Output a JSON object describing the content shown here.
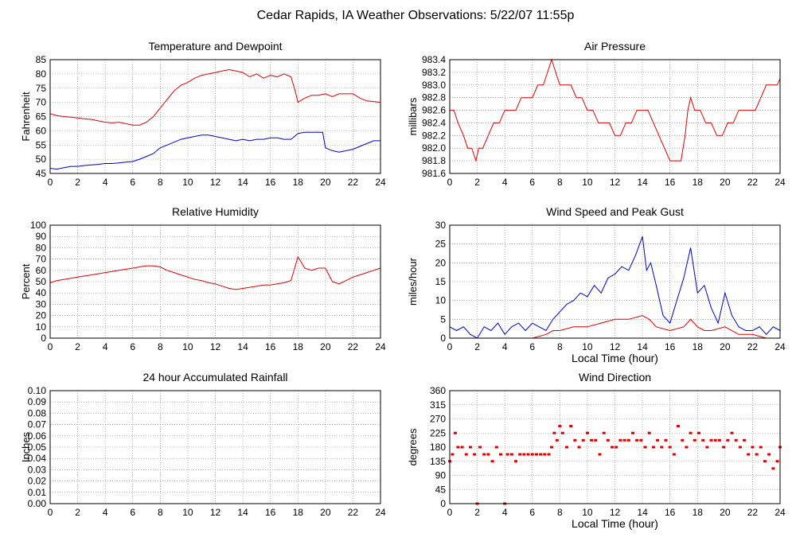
{
  "page": {
    "title": "Cedar Rapids, IA Weather Observations: 5/22/07 11:55p"
  },
  "colors": {
    "red": "#e00000",
    "blue": "#0000cc",
    "grid": "#808080",
    "frame": "#000000"
  },
  "chart_data": [
    {
      "id": "temp",
      "type": "line",
      "title": "Temperature and Dewpoint",
      "xlabel": "",
      "ylabel": "Fahrenheit",
      "xlim": [
        0,
        24
      ],
      "ylim": [
        45,
        85
      ],
      "xticks": [
        0,
        2,
        4,
        6,
        8,
        10,
        12,
        14,
        16,
        18,
        20,
        22,
        24
      ],
      "yticks": [
        45,
        50,
        55,
        60,
        65,
        70,
        75,
        80,
        85
      ],
      "grid": true,
      "series": [
        {
          "color": "#e00000",
          "x": [
            0,
            0.5,
            1,
            1.5,
            2,
            2.5,
            3,
            3.5,
            4,
            4.5,
            5,
            5.5,
            6,
            6.5,
            7,
            7.5,
            8,
            8.5,
            9,
            9.5,
            10,
            10.5,
            11,
            11.5,
            12,
            12.5,
            13,
            13.5,
            14,
            14.5,
            15,
            15.5,
            16,
            16.5,
            17,
            17.5,
            17.8,
            18,
            18.5,
            19,
            19.5,
            20,
            20.5,
            21,
            21.5,
            22,
            22.5,
            23,
            23.5,
            24
          ],
          "y": [
            66,
            65.3,
            65,
            64.8,
            64.5,
            64.2,
            64,
            63.5,
            63,
            62.8,
            63,
            62.5,
            62,
            62,
            63,
            65,
            68,
            71,
            74,
            76,
            77,
            78.5,
            79.5,
            80,
            80.5,
            81,
            81.5,
            81,
            80.5,
            79,
            80,
            78.5,
            79.5,
            79,
            80,
            79,
            74,
            70,
            71.5,
            72.5,
            72.5,
            73,
            72,
            73,
            73,
            73,
            71.5,
            70.5,
            70.3,
            70
          ]
        },
        {
          "color": "#0000cc",
          "x": [
            0,
            0.5,
            1,
            1.5,
            2,
            2.5,
            3,
            3.5,
            4,
            4.5,
            5,
            5.5,
            6,
            6.5,
            7,
            7.5,
            8,
            8.5,
            9,
            9.5,
            10,
            10.5,
            11,
            11.5,
            12,
            12.5,
            13,
            13.5,
            14,
            14.5,
            15,
            15.5,
            16,
            16.5,
            17,
            17.5,
            18,
            18.5,
            19,
            19.5,
            19.8,
            20,
            20.5,
            21,
            21.5,
            22,
            22.5,
            23,
            23.5,
            24
          ],
          "y": [
            46.8,
            46.5,
            47,
            47.5,
            47.5,
            47.8,
            48,
            48.2,
            48.5,
            48.5,
            48.7,
            49,
            49.2,
            50,
            51,
            52,
            54,
            55,
            56,
            57,
            57.5,
            58,
            58.5,
            58.5,
            58,
            57.5,
            57,
            56.5,
            57,
            56.5,
            57,
            57,
            57.5,
            57.5,
            57,
            57,
            59,
            59.5,
            59.5,
            59.5,
            59.5,
            54,
            53,
            52.5,
            53,
            53.5,
            54.5,
            55.5,
            56.5,
            56.5
          ]
        }
      ]
    },
    {
      "id": "pressure",
      "type": "line",
      "title": "Air Pressure",
      "xlabel": "",
      "ylabel": "millibars",
      "xlim": [
        0,
        24
      ],
      "ylim": [
        981.6,
        983.4
      ],
      "xticks": [
        0,
        2,
        4,
        6,
        8,
        10,
        12,
        14,
        16,
        18,
        20,
        22,
        24
      ],
      "yticks": [
        981.6,
        981.8,
        982.0,
        982.2,
        982.4,
        982.6,
        982.8,
        983.0,
        983.2,
        983.4
      ],
      "ytick_labels": [
        "981.6",
        "981.8",
        "982.0",
        "982.2",
        "982.4",
        "982.6",
        "982.8",
        "983.0",
        "983.2",
        "983.4"
      ],
      "grid": true,
      "series": [
        {
          "color": "#e00000",
          "x": [
            0,
            0.3,
            0.6,
            1,
            1.3,
            1.6,
            1.9,
            2.1,
            2.4,
            2.8,
            3.2,
            3.6,
            4,
            4.4,
            4.8,
            5.2,
            5.6,
            6,
            6.4,
            6.8,
            7.1,
            7.4,
            7.7,
            8,
            8.4,
            8.8,
            9.2,
            9.6,
            10,
            10.4,
            10.8,
            11.2,
            11.6,
            12,
            12.4,
            12.8,
            13.2,
            13.6,
            14,
            14.4,
            14.8,
            15.2,
            15.6,
            16,
            16.4,
            16.8,
            17.1,
            17.3,
            17.5,
            17.8,
            18.2,
            18.6,
            19,
            19.4,
            19.8,
            20.2,
            20.6,
            21,
            21.4,
            21.8,
            22.2,
            22.6,
            23,
            23.4,
            23.8,
            24
          ],
          "y": [
            982.6,
            982.6,
            982.4,
            982.2,
            982.0,
            982.0,
            981.8,
            982.0,
            982.0,
            982.2,
            982.4,
            982.4,
            982.6,
            982.6,
            982.6,
            982.8,
            982.8,
            982.8,
            983.0,
            983.0,
            983.2,
            983.4,
            983.2,
            983.0,
            983.0,
            983.0,
            982.8,
            982.8,
            982.6,
            982.6,
            982.4,
            982.4,
            982.4,
            982.2,
            982.2,
            982.4,
            982.4,
            982.6,
            982.6,
            982.6,
            982.4,
            982.2,
            982.0,
            981.8,
            981.8,
            981.8,
            982.2,
            982.6,
            982.8,
            982.6,
            982.6,
            982.4,
            982.4,
            982.2,
            982.2,
            982.4,
            982.4,
            982.6,
            982.6,
            982.6,
            982.6,
            982.8,
            983.0,
            983.0,
            983.0,
            983.1
          ]
        }
      ]
    },
    {
      "id": "humidity",
      "type": "line",
      "title": "Relative Humidity",
      "xlabel": "",
      "ylabel": "Percent",
      "xlim": [
        0,
        24
      ],
      "ylim": [
        0,
        100
      ],
      "xticks": [
        0,
        2,
        4,
        6,
        8,
        10,
        12,
        14,
        16,
        18,
        20,
        22,
        24
      ],
      "yticks": [
        0,
        10,
        20,
        30,
        40,
        50,
        60,
        70,
        80,
        90,
        100
      ],
      "grid": true,
      "series": [
        {
          "color": "#e00000",
          "x": [
            0,
            0.5,
            1,
            1.5,
            2,
            2.5,
            3,
            3.5,
            4,
            4.5,
            5,
            5.5,
            6,
            6.5,
            7,
            7.5,
            8,
            8.5,
            9,
            9.5,
            10,
            10.5,
            11,
            11.5,
            12,
            12.5,
            13,
            13.5,
            14,
            14.5,
            15,
            15.5,
            16,
            16.5,
            17,
            17.5,
            18,
            18.5,
            19,
            19.5,
            20,
            20.5,
            21,
            21.5,
            22,
            22.5,
            23,
            23.5,
            24
          ],
          "y": [
            49,
            51,
            52,
            53,
            54,
            55,
            56,
            57,
            58,
            59,
            60,
            61,
            62,
            63,
            64,
            64,
            63,
            60,
            58,
            56,
            54,
            52,
            51,
            49,
            48,
            46,
            44,
            43,
            44,
            45,
            46,
            47,
            47,
            48,
            49,
            51,
            72,
            62,
            60,
            62,
            62,
            50,
            48,
            51,
            54,
            56,
            58,
            60,
            62
          ]
        }
      ]
    },
    {
      "id": "wind",
      "type": "line",
      "title": "Wind Speed and Peak Gust",
      "xlabel": "Local Time (hour)",
      "ylabel": "miles/hour",
      "xlim": [
        0,
        24
      ],
      "ylim": [
        0,
        30
      ],
      "xticks": [
        0,
        2,
        4,
        6,
        8,
        10,
        12,
        14,
        16,
        18,
        20,
        22,
        24
      ],
      "yticks": [
        0,
        5,
        10,
        15,
        20,
        25,
        30
      ],
      "grid": true,
      "series": [
        {
          "color": "#0000cc",
          "x": [
            0,
            0.5,
            1,
            1.5,
            2,
            2.5,
            3,
            3.5,
            4,
            4.5,
            5,
            5.5,
            6,
            6.5,
            7,
            7.5,
            8,
            8.5,
            9,
            9.5,
            10,
            10.5,
            11,
            11.5,
            12,
            12.5,
            13,
            13.5,
            14,
            14.3,
            14.6,
            15,
            15.5,
            16,
            16.5,
            17,
            17.5,
            18,
            18.5,
            19,
            19.5,
            20,
            20.5,
            21,
            21.5,
            22,
            22.5,
            23,
            23.5,
            24
          ],
          "y": [
            3,
            2,
            3,
            1,
            0,
            3,
            2,
            4,
            1,
            3,
            4,
            2,
            4,
            3,
            2,
            5,
            7,
            9,
            10,
            12,
            11,
            14,
            12,
            16,
            17,
            19,
            18,
            22,
            27,
            18,
            20,
            14,
            6,
            4,
            10,
            16,
            24,
            12,
            14,
            8,
            4,
            12,
            6,
            3,
            2,
            2,
            3,
            1,
            3,
            2
          ]
        },
        {
          "color": "#e00000",
          "x": [
            0,
            1,
            2,
            3,
            4,
            5,
            6,
            7,
            7.5,
            8,
            9,
            10,
            11,
            12,
            13,
            14,
            14.5,
            15,
            16,
            17,
            17.5,
            18,
            18.5,
            19,
            20,
            21,
            22,
            23,
            24
          ],
          "y": [
            0,
            0,
            0,
            0,
            0,
            0,
            0,
            1,
            2,
            2,
            3,
            3,
            4,
            5,
            5,
            6,
            5,
            3,
            2,
            3,
            5,
            3,
            2,
            2,
            3,
            1,
            1,
            0,
            0
          ]
        }
      ]
    },
    {
      "id": "rain",
      "type": "line",
      "title": "24 hour Accumulated Rainfall",
      "xlabel": "",
      "ylabel": "Inches",
      "xlim": [
        0,
        24
      ],
      "ylim": [
        0,
        0.1
      ],
      "xticks": [
        0,
        2,
        4,
        6,
        8,
        10,
        12,
        14,
        16,
        18,
        20,
        22,
        24
      ],
      "yticks": [
        0,
        0.01,
        0.02,
        0.03,
        0.04,
        0.05,
        0.06,
        0.07,
        0.08,
        0.09,
        0.1
      ],
      "ytick_labels": [
        "0.00",
        "0.01",
        "0.02",
        "0.03",
        "0.04",
        "0.05",
        "0.06",
        "0.07",
        "0.08",
        "0.09",
        "0.10"
      ],
      "grid": true,
      "series": [
        {
          "color": "#e00000",
          "x": [
            0,
            24
          ],
          "y": [
            0,
            0
          ]
        }
      ]
    },
    {
      "id": "direction",
      "type": "scatter",
      "title": "Wind Direction",
      "xlabel": "Local Time (hour)",
      "ylabel": "degrees",
      "xlim": [
        0,
        24
      ],
      "ylim": [
        0,
        360
      ],
      "xticks": [
        0,
        2,
        4,
        6,
        8,
        10,
        12,
        14,
        16,
        18,
        20,
        22,
        24
      ],
      "yticks": [
        0,
        45,
        90,
        135,
        180,
        225,
        270,
        315,
        360
      ],
      "grid": true,
      "series": [
        {
          "color": "#e00000",
          "x": [
            0,
            0.2,
            0.4,
            0.6,
            0.9,
            1.2,
            1.5,
            1.8,
            2.0,
            2.2,
            2.5,
            2.8,
            3.1,
            3.4,
            3.7,
            4.0,
            4.2,
            4.5,
            4.8,
            5.1,
            5.4,
            5.7,
            6.0,
            6.3,
            6.6,
            6.9,
            7.2,
            7.4,
            7.6,
            7.8,
            8.0,
            8.2,
            8.5,
            8.8,
            9.1,
            9.4,
            9.7,
            10.0,
            10.3,
            10.6,
            10.9,
            11.2,
            11.5,
            11.8,
            12.1,
            12.4,
            12.7,
            13.0,
            13.3,
            13.6,
            13.9,
            14.2,
            14.5,
            14.8,
            15.1,
            15.4,
            15.7,
            16.0,
            16.3,
            16.6,
            16.9,
            17.2,
            17.5,
            17.8,
            18.1,
            18.4,
            18.7,
            19.0,
            19.3,
            19.6,
            19.9,
            20.2,
            20.5,
            20.8,
            21.1,
            21.4,
            21.7,
            22.0,
            22.3,
            22.6,
            22.9,
            23.2,
            23.5,
            23.8,
            24.0
          ],
          "y": [
            135,
            157,
            225,
            180,
            180,
            157,
            180,
            157,
            0,
            180,
            157,
            157,
            135,
            180,
            157,
            0,
            157,
            157,
            135,
            157,
            157,
            157,
            157,
            157,
            157,
            157,
            157,
            180,
            225,
            202,
            247,
            225,
            180,
            247,
            202,
            180,
            202,
            225,
            202,
            202,
            157,
            225,
            202,
            180,
            180,
            202,
            202,
            202,
            225,
            202,
            202,
            180,
            225,
            180,
            202,
            180,
            202,
            180,
            157,
            247,
            202,
            180,
            225,
            202,
            225,
            202,
            180,
            202,
            202,
            202,
            180,
            202,
            225,
            202,
            180,
            202,
            157,
            180,
            157,
            180,
            135,
            157,
            112,
            135,
            180
          ]
        }
      ]
    }
  ]
}
